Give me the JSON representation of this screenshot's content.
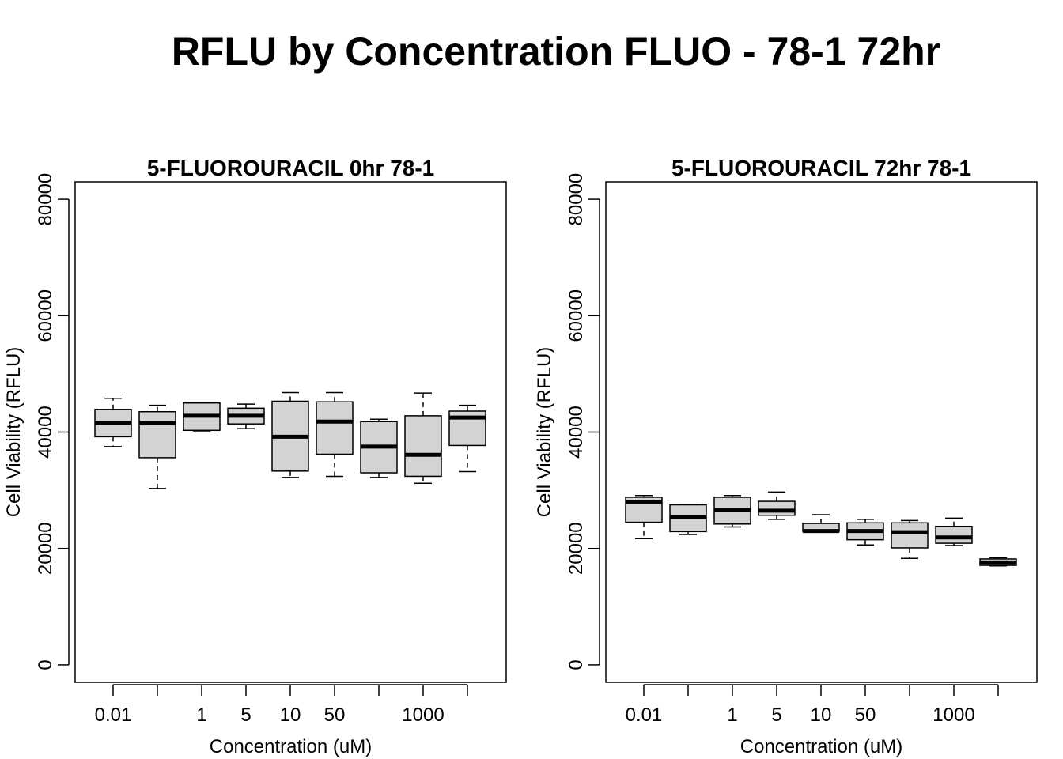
{
  "figure": {
    "title": "RFLU by Concentration FLUO - 78-1 72hr"
  },
  "chart_data": [
    {
      "type": "box",
      "title": "5-FLUOROURACIL 0hr 78-1",
      "xlabel": "Concentration (uM)",
      "ylabel": "Cell Viability (RFLU)",
      "ylim": [
        -3000,
        83000
      ],
      "yticks": [
        0,
        20000,
        40000,
        60000,
        80000
      ],
      "ytick_labels": [
        "0",
        "20000",
        "40000",
        "60000",
        "80000"
      ],
      "categories": [
        "0.01",
        "",
        "1",
        "5",
        "10",
        "50",
        "",
        "1000",
        ""
      ],
      "grid": false,
      "boxes": [
        {
          "whisker_low": 37500,
          "q1": 39200,
          "median": 41600,
          "q3": 43900,
          "whisker_high": 45800
        },
        {
          "whisker_low": 30300,
          "q1": 35600,
          "median": 41500,
          "q3": 43500,
          "whisker_high": 44600
        },
        {
          "whisker_low": 40200,
          "q1": 40300,
          "median": 42800,
          "q3": 45000,
          "whisker_high": 45000
        },
        {
          "whisker_low": 40600,
          "q1": 41400,
          "median": 42800,
          "q3": 44100,
          "whisker_high": 44800
        },
        {
          "whisker_low": 32200,
          "q1": 33300,
          "median": 39200,
          "q3": 45300,
          "whisker_high": 46800
        },
        {
          "whisker_low": 32400,
          "q1": 36200,
          "median": 41800,
          "q3": 45200,
          "whisker_high": 46800
        },
        {
          "whisker_low": 32200,
          "q1": 33000,
          "median": 37500,
          "q3": 41800,
          "whisker_high": 42200
        },
        {
          "whisker_low": 31200,
          "q1": 32400,
          "median": 36100,
          "q3": 42800,
          "whisker_high": 46700
        },
        {
          "whisker_low": 33200,
          "q1": 37700,
          "median": 42500,
          "q3": 43600,
          "whisker_high": 44600
        }
      ]
    },
    {
      "type": "box",
      "title": "5-FLUOROURACIL 72hr 78-1",
      "xlabel": "Concentration (uM)",
      "ylabel": "Cell Viability (RFLU)",
      "ylim": [
        -3000,
        83000
      ],
      "yticks": [
        0,
        20000,
        40000,
        60000,
        80000
      ],
      "ytick_labels": [
        "0",
        "20000",
        "40000",
        "60000",
        "80000"
      ],
      "categories": [
        "0.01",
        "",
        "1",
        "5",
        "10",
        "50",
        "",
        "1000",
        ""
      ],
      "grid": false,
      "boxes": [
        {
          "whisker_low": 21700,
          "q1": 24500,
          "median": 28000,
          "q3": 28800,
          "whisker_high": 29100
        },
        {
          "whisker_low": 22400,
          "q1": 22900,
          "median": 25400,
          "q3": 27500,
          "whisker_high": 27500
        },
        {
          "whisker_low": 23700,
          "q1": 24200,
          "median": 26600,
          "q3": 28800,
          "whisker_high": 29100
        },
        {
          "whisker_low": 25000,
          "q1": 25700,
          "median": 26500,
          "q3": 28100,
          "whisker_high": 29700
        },
        {
          "whisker_low": 22800,
          "q1": 22900,
          "median": 23000,
          "q3": 24300,
          "whisker_high": 25800
        },
        {
          "whisker_low": 20600,
          "q1": 21500,
          "median": 23000,
          "q3": 24400,
          "whisker_high": 25000
        },
        {
          "whisker_low": 18300,
          "q1": 20100,
          "median": 22800,
          "q3": 24400,
          "whisker_high": 24800
        },
        {
          "whisker_low": 20500,
          "q1": 20900,
          "median": 21900,
          "q3": 23800,
          "whisker_high": 25200
        },
        {
          "whisker_low": 17000,
          "q1": 17100,
          "median": 17600,
          "q3": 18200,
          "whisker_high": 18400
        }
      ]
    }
  ]
}
